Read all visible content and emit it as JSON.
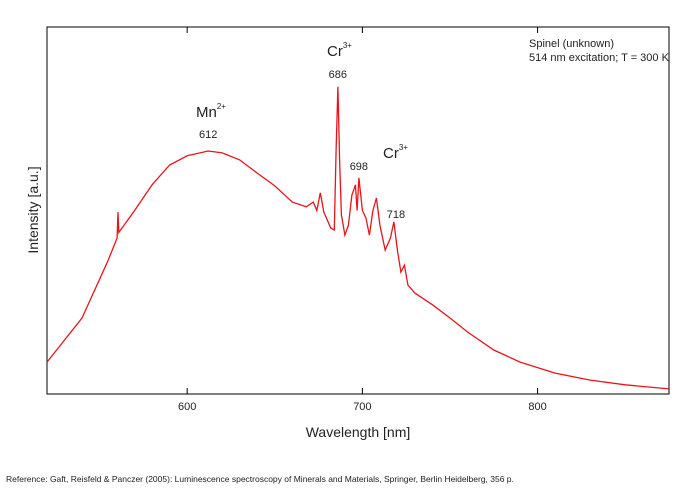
{
  "chart_data": {
    "type": "line",
    "info": [
      "Spinel (unknown)",
      "514 nm excitation; T = 300 K"
    ],
    "xlabel": "Wavelength [nm]",
    "ylabel": "Intensity [a.u.]",
    "xlim": [
      520,
      875
    ],
    "xticks": [
      600,
      700,
      800
    ],
    "ylim": [
      0,
      100
    ],
    "color": "#e8141a",
    "x": [
      520,
      540,
      555,
      560,
      560.5,
      561,
      570,
      580,
      590,
      600,
      612,
      620,
      630,
      640,
      650,
      660,
      668,
      672,
      674,
      676,
      678,
      682,
      684,
      685,
      686,
      687,
      688,
      690,
      692,
      694,
      696,
      697,
      698,
      700,
      702,
      704,
      706,
      708,
      710,
      713,
      716,
      718,
      720,
      722,
      724,
      726,
      730,
      740,
      750,
      760,
      775,
      790,
      810,
      830,
      850,
      875
    ],
    "values": [
      8.7,
      20.7,
      36.5,
      42.5,
      49.6,
      44,
      50,
      57,
      62.4,
      64.9,
      66.2,
      65.7,
      63.8,
      60.2,
      56.7,
      52.3,
      51,
      52.3,
      50,
      54.8,
      49.6,
      45.2,
      44.7,
      66.5,
      83.7,
      63.8,
      48.8,
      43.3,
      46,
      54.2,
      57,
      50,
      58.9,
      50,
      48,
      43.3,
      50,
      53.4,
      46,
      39.2,
      42.5,
      46.9,
      39.2,
      33.2,
      35.1,
      29.7,
      27.5,
      24.3,
      20.7,
      16.9,
      12,
      8.7,
      5.7,
      3.8,
      2.5,
      1.4
    ],
    "annotations": [
      {
        "ion": "Mn",
        "charge": "2+"
      },
      {
        "ion": "Cr",
        "charge": "3+"
      },
      {
        "ion": "Cr",
        "charge": "3+"
      }
    ],
    "peaks": [
      612,
      686,
      698,
      718
    ]
  },
  "footer": "Reference: Gaft, Reisfeld & Panczer (2005): Luminescence spectroscopy of Minerals and Materials, Springer, Berlin Heidelberg, 356 p."
}
